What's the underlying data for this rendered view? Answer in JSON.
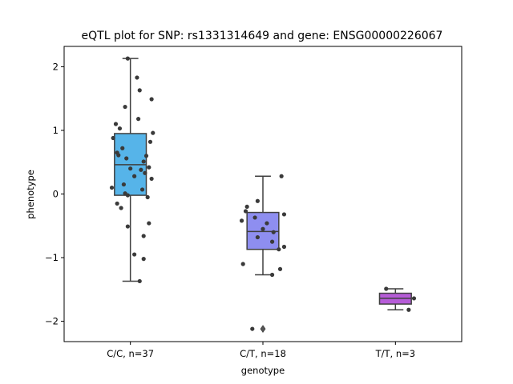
{
  "chart_data": {
    "type": "box",
    "title": "eQTL plot for SNP: rs1331314649 and gene: ENSG00000226067",
    "xlabel": "genotype",
    "ylabel": "phenotype",
    "ylim": [
      -2.32,
      2.32
    ],
    "yticks": [
      -2,
      -1,
      0,
      1,
      2
    ],
    "ytick_labels": [
      "−2",
      "−1",
      "0",
      "1",
      "2"
    ],
    "grid": false,
    "groups": [
      {
        "label": "C/C, n=37",
        "color": "#56b4e9",
        "q1": -0.02,
        "median": 0.46,
        "q3": 0.95,
        "whisker_low": -1.37,
        "whisker_high": 2.13,
        "outliers": [],
        "points": [
          [
            -0.02,
            2.13
          ],
          [
            0.05,
            1.83
          ],
          [
            0.07,
            1.63
          ],
          [
            0.16,
            1.49
          ],
          [
            -0.04,
            1.37
          ],
          [
            0.06,
            1.18
          ],
          [
            -0.11,
            1.1
          ],
          [
            -0.08,
            1.03
          ],
          [
            0.17,
            0.96
          ],
          [
            -0.13,
            0.88
          ],
          [
            0.15,
            0.82
          ],
          [
            -0.06,
            0.72
          ],
          [
            -0.1,
            0.65
          ],
          [
            0.12,
            0.6
          ],
          [
            -0.09,
            0.61
          ],
          [
            -0.03,
            0.56
          ],
          [
            0.1,
            0.51
          ],
          [
            0.14,
            0.42
          ],
          [
            0.08,
            0.38
          ],
          [
            0.11,
            0.33
          ],
          [
            0.03,
            0.28
          ],
          [
            0.16,
            0.24
          ],
          [
            -0.05,
            0.15
          ],
          [
            -0.14,
            0.1
          ],
          [
            0.09,
            0.07
          ],
          [
            -0.04,
            0.01
          ],
          [
            -0.02,
            -0.02
          ],
          [
            0.13,
            -0.05
          ],
          [
            -0.1,
            -0.15
          ],
          [
            -0.07,
            -0.22
          ],
          [
            0.14,
            -0.46
          ],
          [
            -0.02,
            -0.51
          ],
          [
            0.1,
            -0.66
          ],
          [
            0.03,
            -0.95
          ],
          [
            0.1,
            -1.02
          ],
          [
            0.07,
            -1.37
          ],
          [
            0.0,
            0.4
          ]
        ]
      },
      {
        "label": "C/T, n=18",
        "color": "#8e8ef0",
        "q1": -0.87,
        "median": -0.59,
        "q3": -0.29,
        "whisker_low": -1.27,
        "whisker_high": 0.28,
        "outliers": [
          -2.12
        ],
        "points": [
          [
            0.14,
            0.28
          ],
          [
            -0.04,
            -0.11
          ],
          [
            -0.12,
            -0.2
          ],
          [
            -0.13,
            -0.27
          ],
          [
            0.16,
            -0.32
          ],
          [
            -0.06,
            -0.37
          ],
          [
            -0.16,
            -0.42
          ],
          [
            0.03,
            -0.46
          ],
          [
            0.0,
            -0.55
          ],
          [
            0.08,
            -0.6
          ],
          [
            -0.04,
            -0.68
          ],
          [
            0.07,
            -0.75
          ],
          [
            0.16,
            -0.83
          ],
          [
            0.12,
            -0.87
          ],
          [
            -0.15,
            -1.1
          ],
          [
            0.13,
            -1.18
          ],
          [
            0.07,
            -1.27
          ],
          [
            -0.08,
            -2.12
          ]
        ]
      },
      {
        "label": "T/T, n=3",
        "color": "#b65cd8",
        "q1": -1.73,
        "median": -1.64,
        "q3": -1.56,
        "whisker_low": -1.82,
        "whisker_high": -1.49,
        "outliers": [],
        "points": [
          [
            -0.07,
            -1.49
          ],
          [
            0.14,
            -1.64
          ],
          [
            0.1,
            -1.82
          ]
        ]
      }
    ]
  }
}
